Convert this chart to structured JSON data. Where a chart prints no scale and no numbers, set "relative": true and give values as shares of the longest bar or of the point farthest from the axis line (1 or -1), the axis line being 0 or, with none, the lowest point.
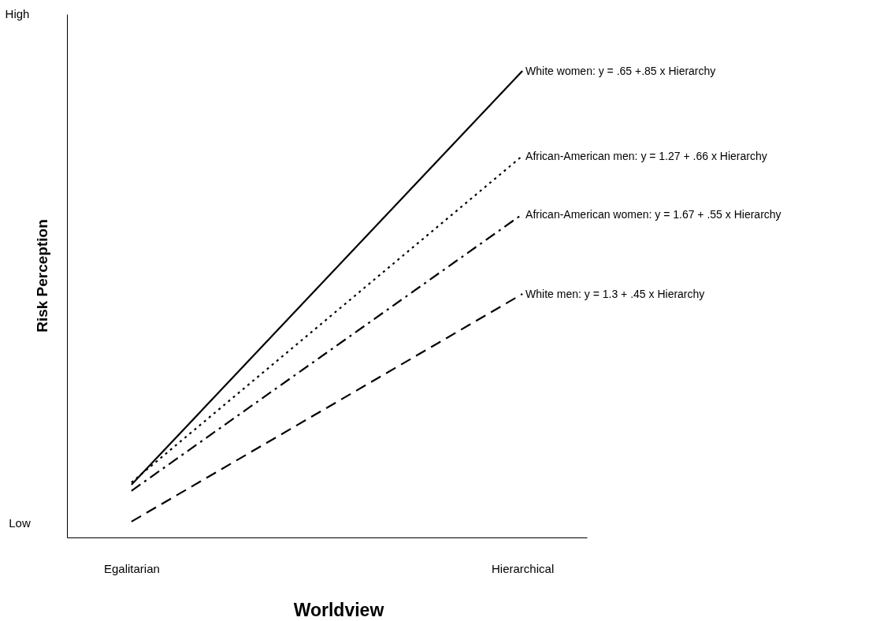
{
  "chart_data": {
    "type": "line",
    "xlabel": "Worldview",
    "ylabel": "Risk Perception",
    "relative": true,
    "categories": [
      "Egalitarian",
      "Hierarchical"
    ],
    "series": [
      {
        "name": "White women: y = .65 +.85 x Hierarchy",
        "color": "#000000",
        "line_style": "solid",
        "values": [
          0.113,
          1
        ]
      },
      {
        "name": "African-American men: y = 1.27 + .66 x Hierarchy",
        "color": "#000000",
        "line_style": "dotted",
        "values": [
          0.118,
          0.818
        ]
      },
      {
        "name": "African-American women: y = 1.67 + .55 x Hierarchy",
        "color": "#000000",
        "line_style": "dashdot",
        "values": [
          0.1,
          0.693
        ]
      },
      {
        "name": "White men: y = 1.3 + .45 x Hierarchy",
        "color": "#000000",
        "line_style": "dashed",
        "values": [
          0.034,
          0.522
        ]
      }
    ],
    "annotations": [
      "High",
      "Low"
    ],
    "marker": "none"
  }
}
